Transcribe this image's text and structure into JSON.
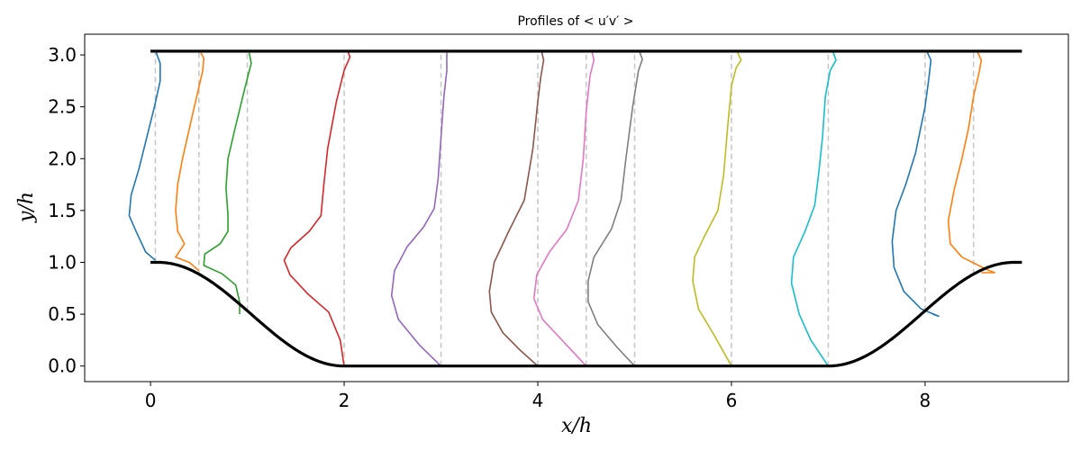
{
  "chart_data": {
    "type": "line",
    "title": "Profiles of  < u′v′ >",
    "xlabel": "x/h",
    "ylabel": "y/h",
    "xlim": [
      -0.68,
      9.48
    ],
    "ylim": [
      -0.15,
      3.2
    ],
    "xticks": [
      0,
      2,
      4,
      6,
      8
    ],
    "xtick_labels": [
      "0",
      "2",
      "4",
      "6",
      "8"
    ],
    "yticks": [
      0.0,
      0.5,
      1.0,
      1.5,
      2.0,
      2.5,
      3.0
    ],
    "ytick_labels": [
      "0.0",
      "0.5",
      "1.0",
      "1.5",
      "2.0",
      "2.5",
      "3.0"
    ],
    "grid": false,
    "top_wall_y": 3.036,
    "hill": {
      "x_start": 0,
      "x_end": 9,
      "height": 1,
      "crest_width": 0.08,
      "slope_length": 1.92
    },
    "stations": [
      0.05,
      0.5,
      1,
      2,
      3,
      4,
      4.5,
      5,
      6,
      7,
      8,
      8.5
    ],
    "series": [
      {
        "station": 0.05,
        "color": "#1f77b4",
        "points": [
          [
            0.05,
            1.02
          ],
          [
            -0.05,
            1.1
          ],
          [
            -0.15,
            1.3
          ],
          [
            -0.22,
            1.45
          ],
          [
            -0.2,
            1.65
          ],
          [
            -0.12,
            1.9
          ],
          [
            -0.04,
            2.2
          ],
          [
            0.04,
            2.5
          ],
          [
            0.1,
            2.75
          ],
          [
            0.1,
            2.92
          ],
          [
            0.06,
            3.02
          ]
        ]
      },
      {
        "station": 0.5,
        "color": "#ff7f0e",
        "points": [
          [
            0.5,
            0.92
          ],
          [
            0.4,
            1.0
          ],
          [
            0.26,
            1.05
          ],
          [
            0.35,
            1.18
          ],
          [
            0.28,
            1.3
          ],
          [
            0.26,
            1.5
          ],
          [
            0.28,
            1.75
          ],
          [
            0.33,
            2.0
          ],
          [
            0.44,
            2.45
          ],
          [
            0.54,
            2.85
          ],
          [
            0.55,
            2.97
          ],
          [
            0.52,
            3.02
          ]
        ]
      },
      {
        "station": 1,
        "color": "#2ca02c",
        "points": [
          [
            0.92,
            0.5
          ],
          [
            0.92,
            0.62
          ],
          [
            0.88,
            0.78
          ],
          [
            0.74,
            0.89
          ],
          [
            0.55,
            0.97
          ],
          [
            0.56,
            1.08
          ],
          [
            0.72,
            1.18
          ],
          [
            0.8,
            1.3
          ],
          [
            0.8,
            1.45
          ],
          [
            0.78,
            1.72
          ],
          [
            0.8,
            2.0
          ],
          [
            0.87,
            2.28
          ],
          [
            0.98,
            2.7
          ],
          [
            1.04,
            2.92
          ],
          [
            1.02,
            3.02
          ]
        ]
      },
      {
        "station": 2,
        "color": "#d62728",
        "points": [
          [
            2.0,
            0.0
          ],
          [
            1.96,
            0.25
          ],
          [
            1.84,
            0.52
          ],
          [
            1.62,
            0.7
          ],
          [
            1.44,
            0.88
          ],
          [
            1.38,
            1.02
          ],
          [
            1.45,
            1.14
          ],
          [
            1.64,
            1.3
          ],
          [
            1.76,
            1.45
          ],
          [
            1.79,
            1.75
          ],
          [
            1.83,
            2.1
          ],
          [
            1.92,
            2.55
          ],
          [
            2.0,
            2.85
          ],
          [
            2.06,
            2.98
          ],
          [
            2.04,
            3.03
          ]
        ]
      },
      {
        "station": 3,
        "color": "#9467bd",
        "points": [
          [
            3.0,
            0.0
          ],
          [
            2.78,
            0.2
          ],
          [
            2.56,
            0.45
          ],
          [
            2.49,
            0.68
          ],
          [
            2.52,
            0.92
          ],
          [
            2.65,
            1.15
          ],
          [
            2.82,
            1.34
          ],
          [
            2.93,
            1.52
          ],
          [
            2.97,
            1.8
          ],
          [
            3.0,
            2.2
          ],
          [
            3.03,
            2.6
          ],
          [
            3.06,
            2.85
          ],
          [
            3.06,
            3.02
          ]
        ]
      },
      {
        "station": 4,
        "color": "#8c564b",
        "points": [
          [
            4.0,
            0.0
          ],
          [
            3.82,
            0.15
          ],
          [
            3.64,
            0.32
          ],
          [
            3.52,
            0.52
          ],
          [
            3.5,
            0.72
          ],
          [
            3.55,
            1.0
          ],
          [
            3.7,
            1.3
          ],
          [
            3.86,
            1.6
          ],
          [
            3.95,
            2.1
          ],
          [
            4.0,
            2.55
          ],
          [
            4.03,
            2.78
          ],
          [
            4.06,
            2.95
          ],
          [
            4.04,
            3.03
          ]
        ]
      },
      {
        "station": 4.5,
        "color": "#e377c2",
        "points": [
          [
            4.5,
            0.0
          ],
          [
            4.3,
            0.2
          ],
          [
            4.05,
            0.45
          ],
          [
            3.96,
            0.65
          ],
          [
            3.99,
            0.88
          ],
          [
            4.12,
            1.1
          ],
          [
            4.3,
            1.32
          ],
          [
            4.42,
            1.6
          ],
          [
            4.47,
            2.0
          ],
          [
            4.5,
            2.45
          ],
          [
            4.54,
            2.8
          ],
          [
            4.58,
            2.95
          ],
          [
            4.56,
            3.03
          ]
        ]
      },
      {
        "station": 5,
        "color": "#7f7f7f",
        "points": [
          [
            5.0,
            0.0
          ],
          [
            4.82,
            0.18
          ],
          [
            4.62,
            0.4
          ],
          [
            4.52,
            0.62
          ],
          [
            4.52,
            0.82
          ],
          [
            4.58,
            1.05
          ],
          [
            4.76,
            1.32
          ],
          [
            4.86,
            1.6
          ],
          [
            4.91,
            2.0
          ],
          [
            4.98,
            2.5
          ],
          [
            5.04,
            2.85
          ],
          [
            5.08,
            2.96
          ],
          [
            5.05,
            3.03
          ]
        ]
      },
      {
        "station": 6,
        "color": "#bcbd22",
        "points": [
          [
            6.0,
            0.0
          ],
          [
            5.82,
            0.3
          ],
          [
            5.66,
            0.55
          ],
          [
            5.6,
            0.82
          ],
          [
            5.62,
            1.05
          ],
          [
            5.72,
            1.25
          ],
          [
            5.86,
            1.5
          ],
          [
            5.92,
            1.85
          ],
          [
            5.96,
            2.3
          ],
          [
            6.0,
            2.7
          ],
          [
            6.05,
            2.88
          ],
          [
            6.1,
            2.95
          ],
          [
            6.06,
            3.03
          ]
        ]
      },
      {
        "station": 7,
        "color": "#17becf",
        "points": [
          [
            7.0,
            0.0
          ],
          [
            6.82,
            0.25
          ],
          [
            6.7,
            0.5
          ],
          [
            6.62,
            0.8
          ],
          [
            6.64,
            1.05
          ],
          [
            6.76,
            1.3
          ],
          [
            6.86,
            1.55
          ],
          [
            6.9,
            1.85
          ],
          [
            6.94,
            2.2
          ],
          [
            6.97,
            2.6
          ],
          [
            7.02,
            2.85
          ],
          [
            7.08,
            2.95
          ],
          [
            7.05,
            3.03
          ]
        ]
      },
      {
        "station": 8,
        "color": "#1f77b4",
        "points": [
          [
            8.08,
            0.5
          ],
          [
            8.14,
            0.48
          ],
          [
            7.96,
            0.55
          ],
          [
            7.78,
            0.72
          ],
          [
            7.68,
            0.95
          ],
          [
            7.66,
            1.2
          ],
          [
            7.7,
            1.5
          ],
          [
            7.8,
            1.75
          ],
          [
            7.9,
            2.05
          ],
          [
            8.0,
            2.5
          ],
          [
            8.04,
            2.78
          ],
          [
            8.06,
            2.95
          ],
          [
            8.02,
            3.03
          ]
        ]
      },
      {
        "station": 8.5,
        "color": "#ff7f0e",
        "points": [
          [
            8.58,
            0.9
          ],
          [
            8.72,
            0.9
          ],
          [
            8.64,
            0.93
          ],
          [
            8.38,
            1.05
          ],
          [
            8.26,
            1.18
          ],
          [
            8.24,
            1.4
          ],
          [
            8.3,
            1.7
          ],
          [
            8.38,
            2.0
          ],
          [
            8.45,
            2.3
          ],
          [
            8.5,
            2.6
          ],
          [
            8.56,
            2.84
          ],
          [
            8.58,
            2.95
          ],
          [
            8.54,
            3.03
          ]
        ]
      }
    ]
  }
}
